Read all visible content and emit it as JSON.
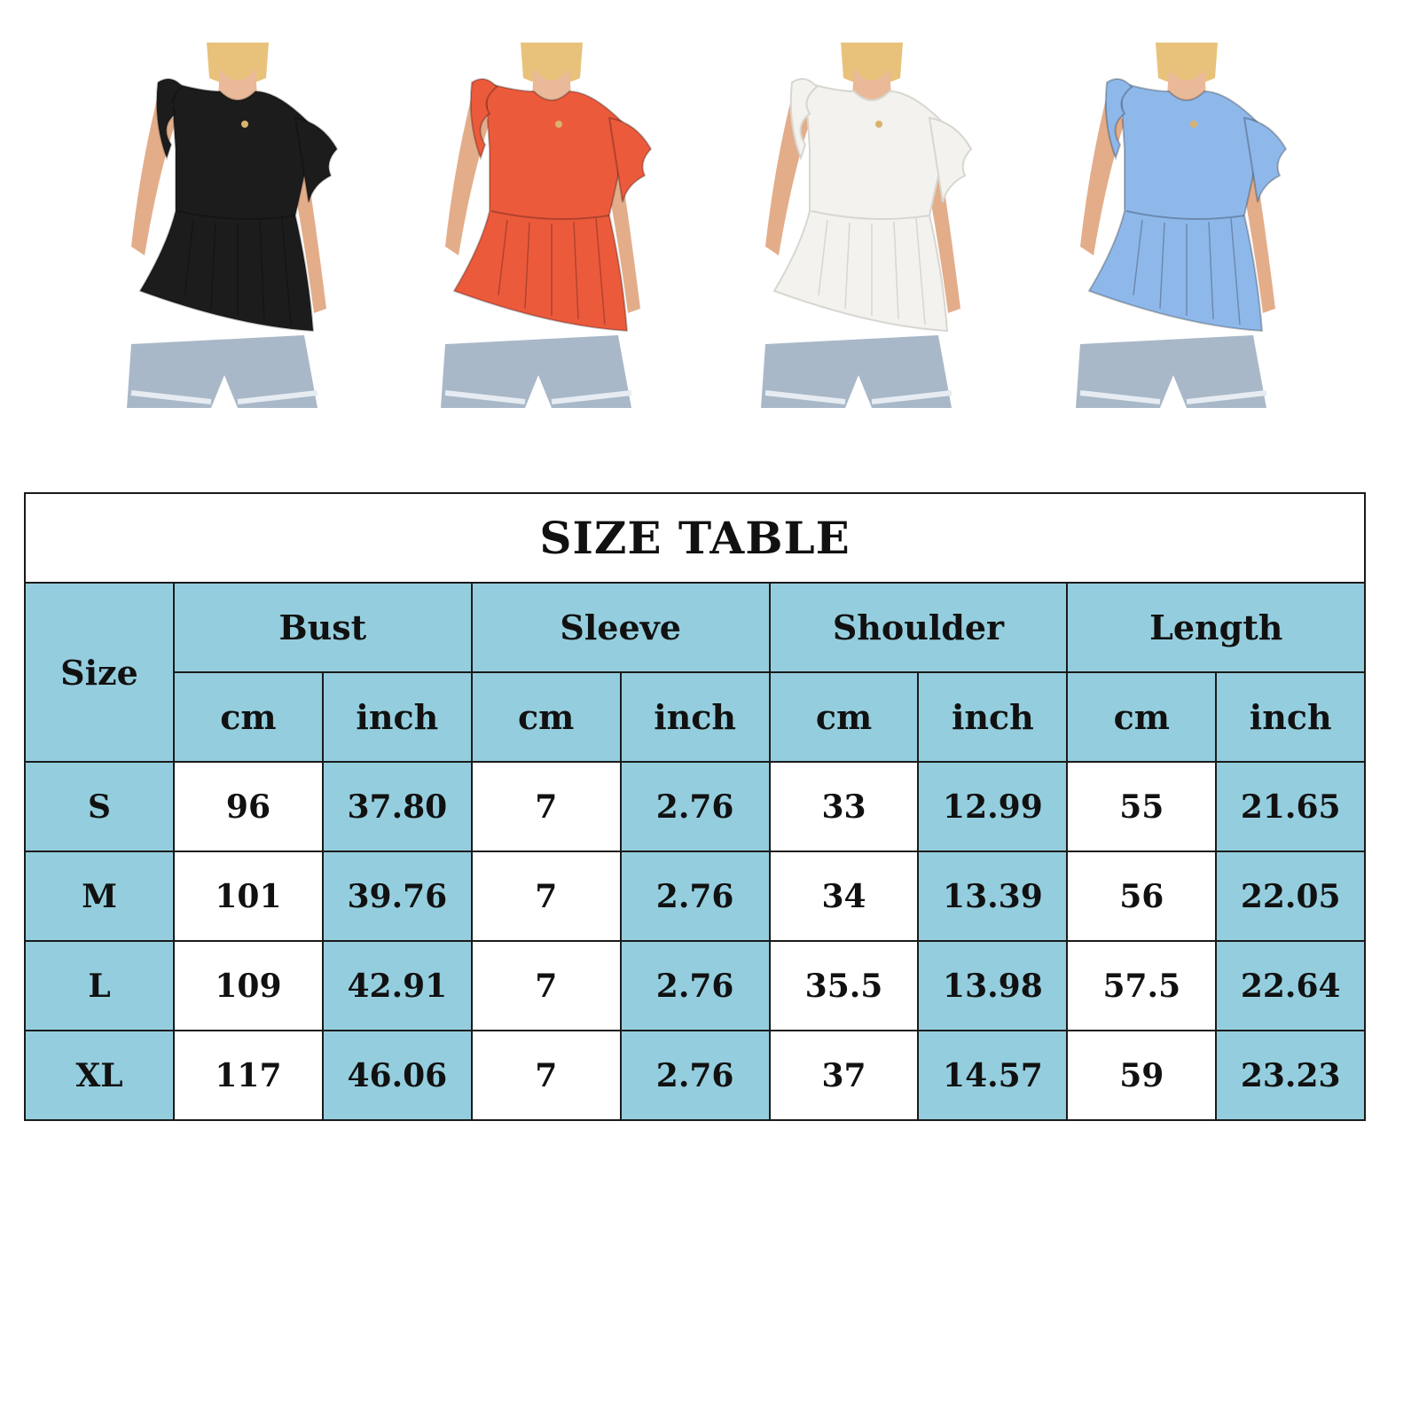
{
  "products": [
    {
      "color_name": "black",
      "color": "#1c1c1c"
    },
    {
      "color_name": "orange-red",
      "color": "#ec5a3c"
    },
    {
      "color_name": "white",
      "color": "#f3f2ee"
    },
    {
      "color_name": "light-blue",
      "color": "#8fb8ea"
    }
  ],
  "table": {
    "title": "SIZE TABLE",
    "size_header": "Size",
    "groups": [
      "Bust",
      "Sleeve",
      "Shoulder",
      "Length"
    ],
    "units": [
      "cm",
      "inch",
      "cm",
      "inch",
      "cm",
      "inch",
      "cm",
      "inch"
    ],
    "rows": [
      {
        "size": "S",
        "values": [
          "96",
          "37.80",
          "7",
          "2.76",
          "33",
          "12.99",
          "55",
          "21.65"
        ]
      },
      {
        "size": "M",
        "values": [
          "101",
          "39.76",
          "7",
          "2.76",
          "34",
          "13.39",
          "56",
          "22.05"
        ]
      },
      {
        "size": "L",
        "values": [
          "109",
          "42.91",
          "7",
          "2.76",
          "35.5",
          "13.98",
          "57.5",
          "22.64"
        ]
      },
      {
        "size": "XL",
        "values": [
          "117",
          "46.06",
          "7",
          "2.76",
          "37",
          "14.57",
          "59",
          "23.23"
        ]
      }
    ],
    "colors": {
      "header_bg": "#94cede",
      "cell_bg": "#ffffff",
      "border": "#1a1a1a"
    }
  }
}
